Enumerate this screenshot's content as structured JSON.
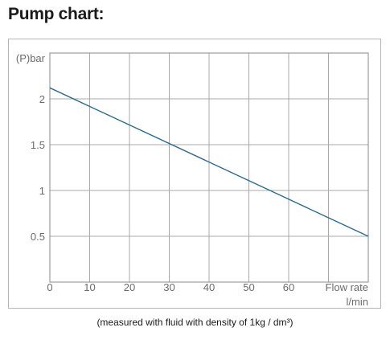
{
  "title": "Pump chart:",
  "caption": "(measured with fluid with density of 1kg / dm³)",
  "colors": {
    "line": "#2b6a8c",
    "grid": "#a8a8a8",
    "text": "#6b6b6b"
  },
  "chart_data": {
    "type": "line",
    "title": "",
    "xlabel": "Flow rate",
    "xunit": "l/min",
    "ylabel": "(P)bar",
    "xlim": [
      0,
      80
    ],
    "ylim": [
      0,
      2.5
    ],
    "x_ticks": [
      0,
      10,
      20,
      30,
      40,
      50,
      60
    ],
    "x_tick_labels": [
      "0",
      "10",
      "20",
      "30",
      "40",
      "50",
      "60"
    ],
    "y_ticks": [
      0.5,
      1,
      1.5,
      2
    ],
    "y_tick_labels": [
      "0.5",
      "1",
      "1.5",
      "2"
    ],
    "grid": true,
    "series": [
      {
        "x": [
          0,
          80
        ],
        "y": [
          2.12,
          0.5
        ]
      }
    ]
  }
}
